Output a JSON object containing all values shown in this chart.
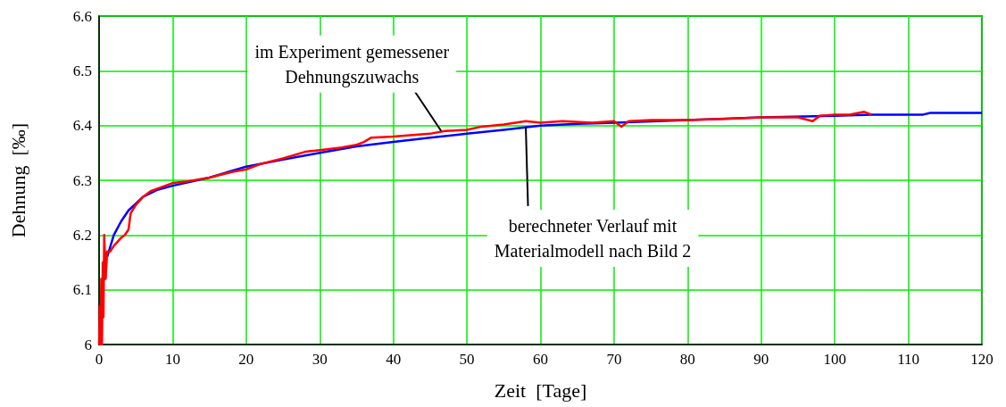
{
  "chart_data": {
    "type": "line",
    "xlabel": "Zeit  [Tage]",
    "ylabel": "Dehnung  [‰]",
    "xlim": [
      0,
      120
    ],
    "xticks": [
      0,
      10,
      20,
      30,
      40,
      50,
      60,
      70,
      80,
      90,
      100,
      110,
      120
    ],
    "ylim": [
      6,
      6.6
    ],
    "yticks": [
      6,
      6.1,
      6.2,
      6.3,
      6.4,
      6.5,
      6.6
    ],
    "grid": true,
    "marker": "none",
    "line_style": "solid",
    "series": [
      {
        "color": "#ff0000",
        "x": [
          0,
          0.1,
          0.2,
          0.3,
          0.4,
          0.5,
          0.6,
          0.7,
          0.9,
          1.1,
          1.5,
          2,
          3,
          3.5,
          4,
          4.3,
          5,
          6,
          7,
          8,
          9,
          10,
          12,
          15,
          18,
          20,
          22,
          25,
          28,
          30,
          33,
          35,
          36,
          37,
          40,
          45,
          47,
          50,
          52,
          55,
          58,
          60,
          63,
          67,
          70,
          71,
          72,
          75,
          80,
          85,
          90,
          95,
          97,
          98,
          100,
          102,
          104,
          105
        ],
        "values": [
          6.0,
          6.07,
          6.0,
          6.12,
          6.0,
          6.15,
          6.05,
          6.2,
          6.12,
          6.17,
          6.17,
          6.18,
          6.195,
          6.2,
          6.21,
          6.24,
          6.255,
          6.27,
          6.28,
          6.285,
          6.29,
          6.295,
          6.298,
          6.305,
          6.315,
          6.32,
          6.33,
          6.34,
          6.352,
          6.355,
          6.36,
          6.365,
          6.37,
          6.378,
          6.38,
          6.385,
          6.39,
          6.392,
          6.398,
          6.402,
          6.408,
          6.405,
          6.408,
          6.405,
          6.408,
          6.398,
          6.408,
          6.41,
          6.41,
          6.412,
          6.415,
          6.415,
          6.408,
          6.418,
          6.42,
          6.42,
          6.425,
          6.42
        ]
      },
      {
        "color": "#0000ff",
        "x": [
          1.1,
          2,
          3,
          4,
          6,
          8,
          10,
          15,
          20,
          25,
          30,
          35,
          40,
          45,
          50,
          55,
          60,
          65,
          70,
          80,
          90,
          100,
          105,
          112,
          113,
          120
        ],
        "values": [
          6.16,
          6.2,
          6.225,
          6.245,
          6.27,
          6.283,
          6.29,
          6.305,
          6.325,
          6.338,
          6.35,
          6.362,
          6.37,
          6.378,
          6.385,
          6.392,
          6.4,
          6.403,
          6.405,
          6.41,
          6.415,
          6.418,
          6.42,
          6.42,
          6.423,
          6.423
        ]
      }
    ],
    "annotations": [
      {
        "text": "im Experiment gemessener\nDehnungszuwachs",
        "x": 46.5,
        "y": 6.39
      },
      {
        "text": "berechneter Verlauf mit\nMaterialmodell nach Bild 2",
        "x": 58,
        "y": 6.398
      }
    ]
  }
}
